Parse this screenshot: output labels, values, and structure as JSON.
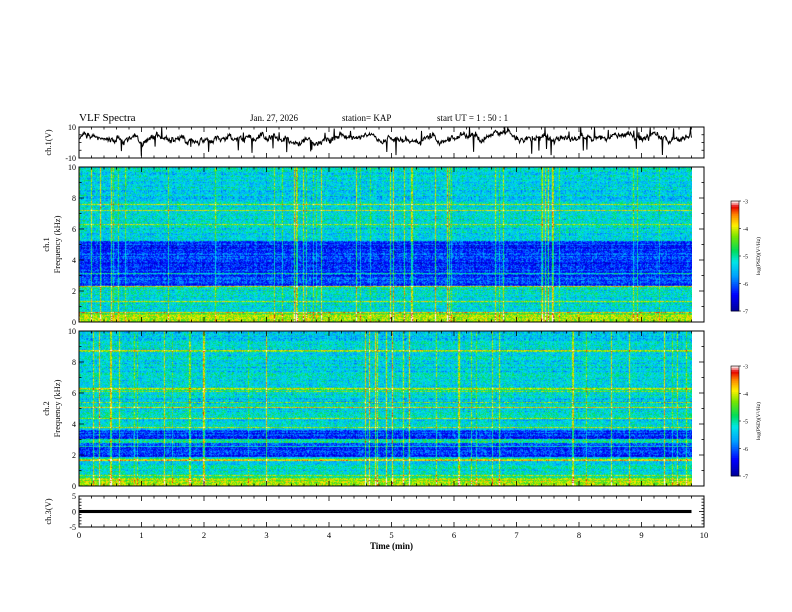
{
  "header": {
    "title": "VLF Spectra",
    "date": "Jan. 27, 2026",
    "station": "station= KAP",
    "start": "start  UT =   1 : 50 : 1"
  },
  "chart_data": [
    {
      "type": "line",
      "panel": "ch1-waveform",
      "ylabel": "ch.1(V)",
      "ylim": [
        -10,
        10
      ],
      "yticks": [
        10,
        -10
      ],
      "xlim": [
        0,
        10
      ],
      "description_series": "dense noisy voltage trace, mostly between -8 and 8 V"
    },
    {
      "type": "heatmap",
      "panel": "ch1-spectrogram",
      "ylabel": "ch.1",
      "ylabel2": "Frequency (kHz)",
      "ylim": [
        0,
        10
      ],
      "yticks": [
        10,
        8,
        6,
        4,
        2,
        0
      ],
      "xlim": [
        0,
        9.8
      ],
      "dominant_bands": [
        {
          "from_khz": 0.0,
          "to_khz": 0.6,
          "level": -4.8
        },
        {
          "from_khz": 0.6,
          "to_khz": 2.3,
          "level": -5.2
        },
        {
          "from_khz": 2.3,
          "to_khz": 5.2,
          "level": -6.2
        },
        {
          "from_khz": 5.2,
          "to_khz": 10.0,
          "level": -5.3
        }
      ],
      "colorbar": {
        "label": "log(PSD)(V²/Hz)",
        "range": [
          -7,
          -3
        ],
        "ticks": [
          -3,
          -4,
          -5,
          -6,
          -7
        ]
      }
    },
    {
      "type": "heatmap",
      "panel": "ch2-spectrogram",
      "ylabel": "ch.2",
      "ylabel2": "Frequency (kHz)",
      "ylim": [
        0,
        10
      ],
      "yticks": [
        10,
        8,
        6,
        4,
        2,
        0
      ],
      "xlim": [
        0,
        9.8
      ],
      "dominant_bands": [
        {
          "from_khz": 0.0,
          "to_khz": 0.6,
          "level": -4.8
        },
        {
          "from_khz": 0.6,
          "to_khz": 1.9,
          "level": -5.2
        },
        {
          "from_khz": 1.9,
          "to_khz": 3.6,
          "level": -6.2
        },
        {
          "from_khz": 3.6,
          "to_khz": 10.0,
          "level": -5.3
        }
      ],
      "colorbar": {
        "label": "log(PSD)(V²/Hz)",
        "range": [
          -7,
          -3
        ],
        "ticks": [
          -3,
          -4,
          -5,
          -6,
          -7
        ]
      }
    },
    {
      "type": "line",
      "panel": "ch3-waveform",
      "ylabel": "ch.3(V)",
      "ylim": [
        -5,
        5
      ],
      "yticks": [
        5,
        0,
        -5
      ],
      "xlim": [
        0,
        10
      ],
      "value_band": [
        -0.5,
        0.5
      ],
      "xlabel": "Time  (min)",
      "xticks": [
        0,
        1,
        2,
        3,
        4,
        5,
        6,
        7,
        8,
        9,
        10
      ]
    }
  ]
}
